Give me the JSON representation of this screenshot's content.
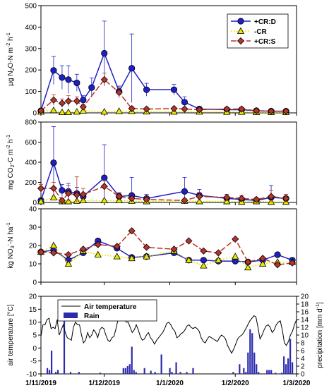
{
  "chart_data": [
    {
      "type": "line",
      "ylabel_main": "µg N",
      "ylabel_sub": "2",
      "ylabel_rest": "O-N m",
      "ylabel_sup": "-2",
      "ylabel_end": " h",
      "ylabel_sup2": "-1",
      "ylim": [
        0,
        500
      ],
      "yticks": [
        "0",
        "100",
        "200",
        "300",
        "400",
        "500"
      ],
      "legend_position": "top-right",
      "series": [
        {
          "name": "+CR:D",
          "color": "#1f1fc8",
          "marker": "circle",
          "x": [
            "2019-11-01",
            "2019-11-07",
            "2019-11-11",
            "2019-11-14",
            "2019-11-18",
            "2019-11-21",
            "2019-11-25",
            "2019-12-01",
            "2019-12-08",
            "2019-12-14",
            "2019-12-21",
            "2020-01-03",
            "2020-01-08",
            "2020-01-15",
            "2020-01-28",
            "2020-02-04",
            "2020-02-11",
            "2020-02-18",
            "2020-02-25"
          ],
          "y": [
            10,
            198,
            165,
            155,
            140,
            60,
            118,
            278,
            100,
            208,
            108,
            108,
            50,
            18,
            15,
            15,
            10,
            8,
            8
          ],
          "err": [
            5,
            65,
            55,
            65,
            40,
            20,
            45,
            150,
            25,
            160,
            30,
            25,
            25,
            5,
            5,
            5,
            5,
            3,
            3
          ]
        },
        {
          "name": "-CR",
          "color": "#e8e800",
          "marker": "triangle",
          "x": [
            "2019-11-01",
            "2019-11-07",
            "2019-11-11",
            "2019-11-14",
            "2019-11-18",
            "2019-11-21",
            "2019-12-01",
            "2019-12-08",
            "2019-12-14",
            "2019-12-21",
            "2020-01-03",
            "2020-01-15",
            "2020-01-28",
            "2020-02-04",
            "2020-02-11",
            "2020-02-18",
            "2020-02-25"
          ],
          "y": [
            5,
            12,
            3,
            3,
            5,
            10,
            5,
            8,
            8,
            6,
            5,
            5,
            4,
            4,
            3,
            3,
            3
          ],
          "err": [
            2,
            5,
            2,
            2,
            2,
            4,
            2,
            3,
            3,
            2,
            2,
            2,
            2,
            2,
            2,
            2,
            2
          ]
        },
        {
          "name": "+CR:S",
          "color": "#b5342c",
          "marker": "diamond",
          "x": [
            "2019-11-01",
            "2019-11-07",
            "2019-11-11",
            "2019-11-14",
            "2019-11-18",
            "2019-11-21",
            "2019-12-01",
            "2019-12-08",
            "2019-12-14",
            "2019-12-21",
            "2020-01-03",
            "2020-01-08",
            "2020-01-15",
            "2020-01-28",
            "2020-02-04",
            "2020-02-11",
            "2020-02-18",
            "2020-02-25"
          ],
          "y": [
            10,
            60,
            45,
            55,
            55,
            28,
            155,
            95,
            20,
            18,
            20,
            18,
            15,
            18,
            18,
            10,
            8,
            8
          ],
          "err": [
            5,
            25,
            20,
            25,
            20,
            10,
            30,
            25,
            5,
            5,
            5,
            5,
            5,
            5,
            5,
            3,
            3,
            3
          ]
        }
      ]
    },
    {
      "type": "line",
      "ylabel_main": "mg CO",
      "ylabel_sub": "2",
      "ylabel_rest": "-C m",
      "ylabel_sup": "-2",
      "ylabel_end": " h",
      "ylabel_sup2": "-1",
      "ylim": [
        0,
        800
      ],
      "yticks": [
        "0",
        "200",
        "400",
        "600",
        "800"
      ],
      "series": [
        {
          "name": "+CR:D",
          "color": "#1f1fc8",
          "marker": "circle",
          "x": [
            "2019-11-01",
            "2019-11-07",
            "2019-11-11",
            "2019-11-14",
            "2019-11-18",
            "2019-11-21",
            "2019-12-01",
            "2019-12-08",
            "2019-12-14",
            "2019-12-21",
            "2020-01-08",
            "2020-01-15",
            "2020-01-28",
            "2020-02-04",
            "2020-02-11",
            "2020-02-18",
            "2020-02-25"
          ],
          "y": [
            20,
            395,
            120,
            110,
            90,
            60,
            245,
            60,
            70,
            40,
            110,
            70,
            40,
            30,
            20,
            50,
            40
          ],
          "err": [
            10,
            360,
            60,
            80,
            60,
            30,
            330,
            30,
            180,
            40,
            140,
            60,
            40,
            20,
            20,
            120,
            40
          ]
        },
        {
          "name": "-CR",
          "color": "#e8e800",
          "marker": "triangle",
          "x": [
            "2019-11-01",
            "2019-11-07",
            "2019-11-11",
            "2019-11-14",
            "2019-11-18",
            "2019-11-21",
            "2019-12-01",
            "2019-12-08",
            "2019-12-14",
            "2019-12-21",
            "2020-01-08",
            "2020-01-15",
            "2020-01-28",
            "2020-02-04",
            "2020-02-11",
            "2020-02-18",
            "2020-02-25"
          ],
          "y": [
            10,
            50,
            10,
            10,
            15,
            20,
            20,
            20,
            15,
            10,
            15,
            10,
            10,
            5,
            10,
            5,
            5
          ],
          "err": [
            5,
            10,
            5,
            5,
            5,
            10,
            5,
            5,
            5,
            5,
            5,
            5,
            5,
            5,
            5,
            5,
            5
          ]
        },
        {
          "name": "+CR:S",
          "color": "#b5342c",
          "marker": "diamond",
          "x": [
            "2019-11-01",
            "2019-11-07",
            "2019-11-11",
            "2019-11-14",
            "2019-11-18",
            "2019-11-21",
            "2019-12-01",
            "2019-12-08",
            "2019-12-14",
            "2019-12-21",
            "2020-01-08",
            "2020-01-15",
            "2020-01-28",
            "2020-02-04",
            "2020-02-11",
            "2020-02-18",
            "2020-02-25"
          ],
          "y": [
            140,
            140,
            20,
            90,
            75,
            80,
            160,
            60,
            40,
            30,
            20,
            60,
            50,
            40,
            30,
            60,
            40
          ],
          "err": [
            40,
            60,
            20,
            80,
            180,
            60,
            60,
            40,
            30,
            30,
            20,
            40,
            30,
            30,
            20,
            60,
            40
          ]
        }
      ]
    },
    {
      "type": "line",
      "ylabel_main": "kg NO",
      "ylabel_sub": "3",
      "ylabel_sup": "-",
      "ylabel_rest": "-N ha",
      "ylabel_sup2": "-1",
      "ylim": [
        0,
        40
      ],
      "yticks": [
        "0",
        "10",
        "20",
        "30",
        "40"
      ],
      "series": [
        {
          "name": "+CR:D",
          "color": "#1f1fc8",
          "marker": "circle",
          "x": [
            "2019-11-01",
            "2019-11-07",
            "2019-11-14",
            "2019-11-21",
            "2019-11-28",
            "2019-12-07",
            "2019-12-14",
            "2019-12-21",
            "2020-01-03",
            "2020-01-10",
            "2020-01-17",
            "2020-01-24",
            "2020-02-01",
            "2020-02-07",
            "2020-02-14",
            "2020-02-21",
            "2020-02-28"
          ],
          "y": [
            16.5,
            17.5,
            12,
            16,
            22.5,
            18.5,
            13.5,
            14,
            16,
            12,
            12,
            11.5,
            11.5,
            11,
            12,
            15,
            12
          ],
          "err": [
            0.5,
            0.5,
            0.5,
            0.5,
            0.5,
            0.5,
            0.5,
            0.5,
            0.5,
            0.5,
            0.5,
            0.5,
            0.5,
            0.5,
            0.5,
            0.5,
            0.5
          ]
        },
        {
          "name": "-CR",
          "color": "#e8e800",
          "marker": "triangle",
          "x": [
            "2019-11-01",
            "2019-11-07",
            "2019-11-14",
            "2019-11-21",
            "2019-11-28",
            "2019-12-07",
            "2019-12-14",
            "2019-12-21",
            "2020-01-03",
            "2020-01-10",
            "2020-01-17",
            "2020-01-24",
            "2020-02-01",
            "2020-02-07",
            "2020-02-14",
            "2020-02-21",
            "2020-02-28"
          ],
          "y": [
            16.5,
            20,
            10,
            17,
            15,
            14,
            13,
            14,
            17,
            12,
            9,
            12,
            14,
            8,
            10,
            11,
            11
          ],
          "err": [
            0.5,
            0.5,
            0.5,
            0.5,
            0.5,
            0.5,
            0.5,
            0.5,
            0.5,
            0.5,
            0.5,
            0.5,
            0.5,
            0.5,
            0.5,
            0.5,
            0.5
          ]
        },
        {
          "name": "+CR:S",
          "color": "#b5342c",
          "marker": "diamond",
          "x": [
            "2019-11-01",
            "2019-11-07",
            "2019-11-14",
            "2019-11-21",
            "2019-11-28",
            "2019-12-07",
            "2019-12-14",
            "2019-12-21",
            "2020-01-03",
            "2020-01-10",
            "2020-01-17",
            "2020-01-24",
            "2020-02-01",
            "2020-02-07",
            "2020-02-14",
            "2020-02-21",
            "2020-02-28"
          ],
          "y": [
            16.5,
            16,
            15,
            18,
            20.5,
            19.5,
            28,
            19,
            18,
            22.5,
            17,
            16,
            23.5,
            11,
            13,
            9.5,
            10.5
          ],
          "err": [
            0.5,
            0.5,
            0.5,
            0.5,
            0.5,
            0.5,
            0.5,
            0.5,
            0.5,
            0.5,
            0.5,
            0.5,
            0.5,
            0.5,
            0.5,
            0.5,
            0.5
          ]
        }
      ]
    },
    {
      "type": "line+bar",
      "ylabel_left": "air temperature [°C]",
      "ylabel_right_main": "precipitation [mm d",
      "ylabel_right_sup": "-1",
      "ylabel_right_end": "]",
      "ylim_left": [
        -10,
        20
      ],
      "ylim_right": [
        0,
        20
      ],
      "yticks_left": [
        "-10",
        "-5",
        "0",
        "5",
        "10",
        "15",
        "20"
      ],
      "yticks_right": [
        "0",
        "2",
        "4",
        "6",
        "8",
        "10",
        "12",
        "14",
        "16",
        "18",
        "20"
      ],
      "legend_position": "top-left",
      "xlim": [
        "2019-11-01",
        "2020-03-01"
      ],
      "xticks": [
        "1/11/2019",
        "1/12/2019",
        "1/1/2020",
        "1/2/2020",
        "1/3/2020"
      ],
      "temperature": {
        "name": "Air temperature",
        "color": "#000000",
        "y": [
          4.5,
          9,
          9,
          11,
          11.5,
          7.5,
          8,
          7.5,
          11,
          5,
          7,
          9,
          6,
          4,
          3.5,
          3,
          8,
          10,
          9,
          9,
          5,
          2,
          3,
          6,
          4,
          5,
          7,
          6,
          4,
          7,
          8,
          7.5,
          5,
          3,
          2.5,
          4,
          4.5,
          7.5,
          11,
          13,
          13.5,
          12,
          10,
          10,
          8,
          6,
          7,
          9,
          7,
          4.5,
          3,
          3.5,
          5,
          6,
          4,
          3,
          1.5,
          3,
          4,
          5,
          6,
          7.5,
          9.5,
          10,
          9,
          7.5,
          6.5,
          4,
          4.5,
          5.5,
          6,
          7,
          8.5,
          9,
          8,
          7.5,
          8,
          7.5,
          6.5,
          4,
          2.5,
          2,
          3.5,
          4.5,
          4,
          3.5,
          3,
          2.5,
          4,
          5,
          4.5,
          3.5,
          1,
          -0.5,
          -2,
          -0.5,
          1.5,
          3.5,
          4.5,
          5,
          6,
          7.5,
          9,
          10.5,
          11.5,
          12.5,
          12,
          8,
          3.5,
          5,
          7,
          8.5,
          9,
          8,
          6,
          7,
          9,
          10,
          10.5,
          7,
          2,
          1,
          2.5,
          5,
          6.5,
          9,
          11
        ]
      },
      "rain": {
        "name": "Rain",
        "color": "#2b2bb0",
        "days": [
          3,
          4,
          5,
          7,
          8,
          11,
          14,
          18,
          28,
          39,
          40,
          41,
          42,
          43,
          44,
          45,
          49,
          52,
          54,
          57,
          61,
          62,
          64,
          66,
          69,
          72,
          91,
          94,
          96,
          97,
          98,
          99,
          100,
          101,
          102,
          103,
          107,
          108,
          109,
          111,
          114,
          115,
          116,
          117,
          118,
          119
        ],
        "values": [
          1.5,
          1,
          6,
          0.5,
          1,
          16.5,
          0.5,
          0.5,
          0.3,
          1.5,
          1.5,
          2,
          2.5,
          7,
          1,
          0.5,
          1.5,
          0.8,
          0.5,
          5,
          1.5,
          0.5,
          3,
          0.5,
          0.5,
          1.5,
          0.5,
          2.5,
          1.5,
          0.5,
          5.5,
          11.5,
          10.5,
          5.5,
          2.5,
          0.5,
          1,
          1,
          1,
          0.3,
          0.3,
          4.5,
          2.5,
          4,
          9,
          3
        ]
      }
    }
  ]
}
